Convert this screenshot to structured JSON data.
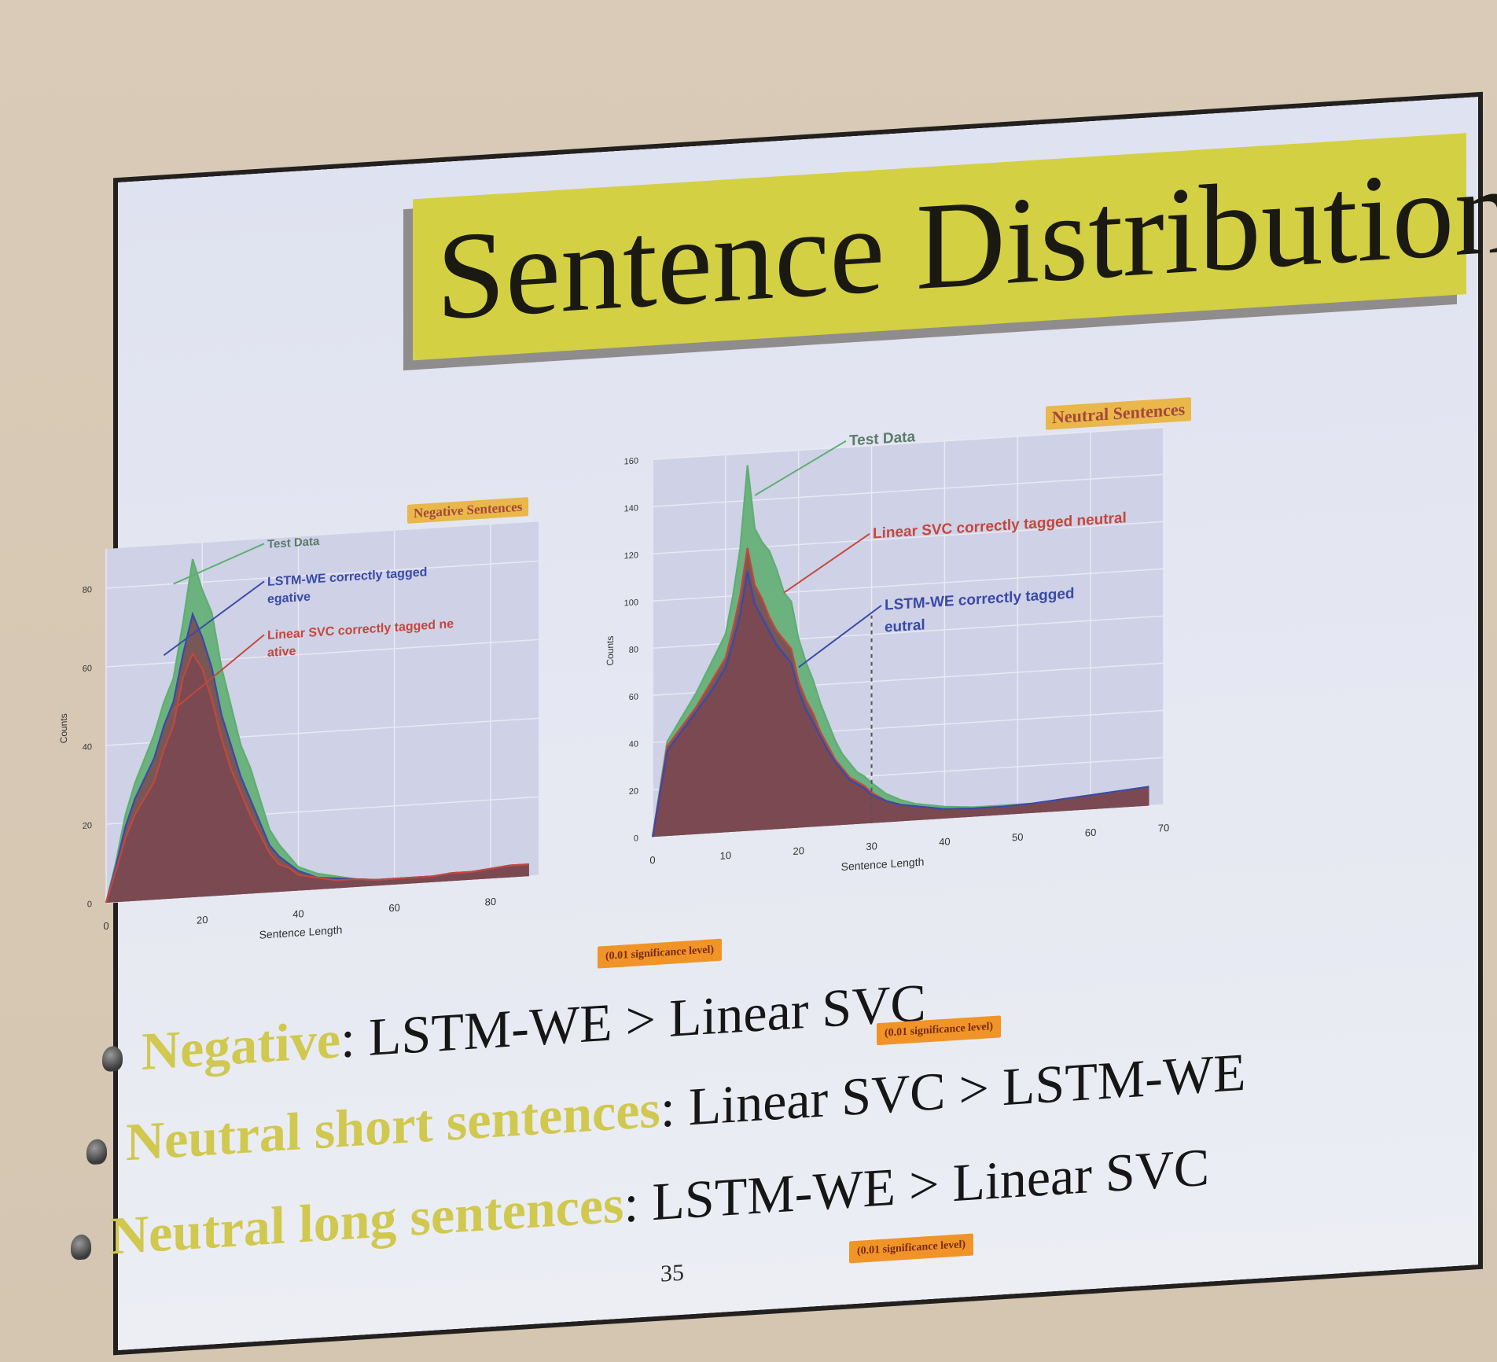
{
  "slide": {
    "title": "Sentence Distribution",
    "page_number": "35"
  },
  "charts": {
    "negative": {
      "badge": "Negative Sentences",
      "xlabel": "Sentence Length",
      "ylabel": "Counts",
      "x_ticks": [
        "0",
        "20",
        "40",
        "60",
        "80"
      ],
      "y_ticks": [
        "0",
        "20",
        "40",
        "60",
        "80"
      ],
      "annotations": {
        "test": "Test Data",
        "lstm": "LSTM-WE correctly tagged negative",
        "svc": "Linear SVC correctly tagged negative"
      }
    },
    "neutral": {
      "badge": "Neutral Sentences",
      "xlabel": "Sentence Length",
      "ylabel": "Counts",
      "x_ticks": [
        "0",
        "10",
        "20",
        "30",
        "40",
        "50",
        "60",
        "70"
      ],
      "y_ticks": [
        "0",
        "20",
        "40",
        "60",
        "80",
        "100",
        "120",
        "140",
        "160"
      ],
      "annotations": {
        "test": "Test Data",
        "svc": "Linear SVC correctly tagged neutral",
        "lstm": "LSTM-WE correctly tagged neutral"
      }
    }
  },
  "chart_data": [
    {
      "type": "area",
      "title": "Negative Sentences",
      "xlabel": "Sentence Length",
      "ylabel": "Counts",
      "xlim": [
        0,
        90
      ],
      "ylim": [
        0,
        90
      ],
      "x": [
        0,
        2,
        4,
        6,
        8,
        10,
        12,
        14,
        16,
        18,
        20,
        22,
        24,
        26,
        28,
        30,
        32,
        34,
        36,
        38,
        40,
        44,
        48,
        52,
        56,
        60,
        64,
        68,
        72,
        76,
        80,
        84,
        88
      ],
      "series": [
        {
          "name": "Test Data",
          "color": "#5fae72",
          "values": [
            0,
            10,
            22,
            30,
            36,
            42,
            50,
            56,
            70,
            86,
            78,
            72,
            58,
            48,
            38,
            32,
            24,
            16,
            12,
            9,
            6,
            4,
            3,
            2,
            1.5,
            1.5,
            1.5,
            1.5,
            2,
            2,
            2.5,
            3,
            3
          ]
        },
        {
          "name": "LSTM-WE correctly tagged negative",
          "color": "#3a4aa8",
          "values": [
            0,
            9,
            19,
            26,
            31,
            36,
            44,
            50,
            62,
            72,
            66,
            58,
            46,
            38,
            30,
            24,
            18,
            12,
            9,
            7,
            5,
            3,
            2.5,
            2,
            1.5,
            1.5,
            1.5,
            1.5,
            2,
            2,
            2.5,
            3,
            3
          ]
        },
        {
          "name": "Linear SVC correctly tagged negative",
          "color": "#c4473c",
          "values": [
            0,
            8,
            16,
            22,
            26,
            30,
            38,
            44,
            56,
            62,
            58,
            50,
            40,
            32,
            26,
            20,
            15,
            10,
            7,
            6,
            4,
            3,
            2,
            2,
            1.5,
            1.5,
            1.5,
            1.5,
            2,
            2,
            2.5,
            3,
            3
          ]
        }
      ]
    },
    {
      "type": "area",
      "title": "Neutral Sentences",
      "xlabel": "Sentence Length",
      "ylabel": "Counts",
      "xlim": [
        0,
        70
      ],
      "ylim": [
        0,
        160
      ],
      "x": [
        0,
        2,
        4,
        6,
        8,
        10,
        11,
        12,
        13,
        14,
        15,
        16,
        17,
        18,
        19,
        20,
        21,
        22,
        23,
        24,
        25,
        26,
        27,
        28,
        29,
        30,
        32,
        34,
        36,
        38,
        40,
        44,
        48,
        52,
        56,
        60,
        64,
        68
      ],
      "series": [
        {
          "name": "Test Data",
          "color": "#5fae72",
          "values": [
            0,
            40,
            50,
            60,
            72,
            84,
            100,
            120,
            155,
            128,
            122,
            118,
            110,
            100,
            96,
            80,
            70,
            62,
            52,
            44,
            36,
            30,
            26,
            22,
            20,
            17,
            12,
            9,
            7,
            6,
            5,
            4,
            4,
            4,
            5,
            6,
            7,
            8
          ]
        },
        {
          "name": "Linear SVC correctly tagged neutral",
          "color": "#c4473c",
          "values": [
            0,
            38,
            46,
            54,
            64,
            74,
            86,
            100,
            120,
            104,
            98,
            90,
            84,
            80,
            76,
            62,
            54,
            48,
            40,
            34,
            28,
            24,
            20,
            18,
            16,
            13,
            9,
            7,
            6,
            5,
            4,
            3.5,
            3.5,
            4,
            5,
            6,
            7,
            8
          ]
        },
        {
          "name": "LSTM-WE correctly tagged neutral",
          "color": "#3a4aa8",
          "values": [
            0,
            36,
            44,
            52,
            60,
            70,
            80,
            92,
            110,
            96,
            90,
            84,
            78,
            74,
            70,
            58,
            50,
            44,
            38,
            32,
            27,
            23,
            19,
            17,
            15,
            12,
            9,
            7,
            6,
            5,
            4,
            3.5,
            3.5,
            4,
            5,
            6,
            7,
            8
          ]
        }
      ]
    }
  ],
  "bullets": [
    {
      "highlight": "Negative",
      "rest": ": LSTM-WE > Linear SVC"
    },
    {
      "highlight": "Neutral short sentences",
      "rest": ": Linear SVC > LSTM-WE"
    },
    {
      "highlight": "Neutral long sentences",
      "rest": ": LSTM-WE > Linear SVC"
    }
  ],
  "significance": [
    "(0.01 significance level)",
    "(0.01 significance level)",
    "(0.01 significance level)"
  ],
  "colors": {
    "test": "#5fae72",
    "svc": "#c4473c",
    "lstm": "#3a4aa8",
    "overlap": "#7a4650",
    "title_band": "#d3d043",
    "highlight_text": "#d0c84f",
    "badge": "#e9b74a"
  }
}
